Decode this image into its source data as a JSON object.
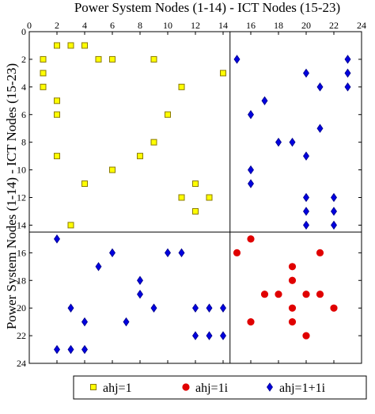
{
  "chart_data": {
    "type": "scatter",
    "title": "Power System Nodes (1-14) - ICT Nodes (15-23)",
    "xlabel": "",
    "ylabel": "Power System Nodes (1-14) - ICT Nodes (15-23)",
    "xlim": [
      0,
      24
    ],
    "ylim": [
      0,
      24
    ],
    "y_inverted": true,
    "x_axis_position": "top",
    "xticks": [
      0,
      2,
      4,
      6,
      8,
      10,
      12,
      14,
      16,
      18,
      20,
      22,
      24
    ],
    "yticks": [
      0,
      2,
      4,
      6,
      8,
      10,
      12,
      14,
      16,
      18,
      20,
      22,
      24
    ],
    "grid": false,
    "divider_lines": {
      "x": 14.5,
      "y": 14.5
    },
    "legend_position": "bottom",
    "series": [
      {
        "name": "ahj=1",
        "marker": "square",
        "color": "#ffff00",
        "edge_color": "#8a7a00",
        "points": [
          [
            1,
            2
          ],
          [
            1,
            3
          ],
          [
            1,
            4
          ],
          [
            2,
            1
          ],
          [
            3,
            1
          ],
          [
            4,
            1
          ],
          [
            5,
            2
          ],
          [
            6,
            2
          ],
          [
            9,
            2
          ],
          [
            14,
            3
          ],
          [
            11,
            4
          ],
          [
            2,
            5
          ],
          [
            2,
            6
          ],
          [
            10,
            6
          ],
          [
            9,
            8
          ],
          [
            8,
            9
          ],
          [
            2,
            9
          ],
          [
            6,
            10
          ],
          [
            4,
            11
          ],
          [
            12,
            11
          ],
          [
            11,
            12
          ],
          [
            13,
            12
          ],
          [
            12,
            13
          ],
          [
            3,
            14
          ]
        ]
      },
      {
        "name": "ahj=1i",
        "marker": "circle",
        "color": "#e00000",
        "edge_color": "#e00000",
        "points": [
          [
            16,
            15
          ],
          [
            15,
            16
          ],
          [
            21,
            16
          ],
          [
            19,
            17
          ],
          [
            19,
            18
          ],
          [
            17,
            19
          ],
          [
            18,
            19
          ],
          [
            20,
            19
          ],
          [
            21,
            19
          ],
          [
            19,
            20
          ],
          [
            22,
            20
          ],
          [
            16,
            21
          ],
          [
            19,
            21
          ],
          [
            20,
            22
          ]
        ]
      },
      {
        "name": "ahj=1+1i",
        "marker": "diamond",
        "color": "#0000e0",
        "edge_color": "#00008a",
        "points": [
          [
            15,
            2
          ],
          [
            23,
            2
          ],
          [
            20,
            3
          ],
          [
            23,
            3
          ],
          [
            21,
            4
          ],
          [
            23,
            4
          ],
          [
            17,
            5
          ],
          [
            16,
            6
          ],
          [
            21,
            7
          ],
          [
            18,
            8
          ],
          [
            19,
            8
          ],
          [
            20,
            9
          ],
          [
            16,
            10
          ],
          [
            16,
            11
          ],
          [
            20,
            12
          ],
          [
            22,
            12
          ],
          [
            20,
            13
          ],
          [
            22,
            13
          ],
          [
            20,
            14
          ],
          [
            22,
            14
          ],
          [
            2,
            15
          ],
          [
            6,
            16
          ],
          [
            10,
            16
          ],
          [
            11,
            16
          ],
          [
            5,
            17
          ],
          [
            8,
            18
          ],
          [
            8,
            19
          ],
          [
            3,
            20
          ],
          [
            9,
            20
          ],
          [
            12,
            20
          ],
          [
            13,
            20
          ],
          [
            14,
            20
          ],
          [
            4,
            21
          ],
          [
            7,
            21
          ],
          [
            12,
            22
          ],
          [
            13,
            22
          ],
          [
            14,
            22
          ],
          [
            2,
            23
          ],
          [
            3,
            23
          ],
          [
            4,
            23
          ]
        ]
      }
    ]
  }
}
